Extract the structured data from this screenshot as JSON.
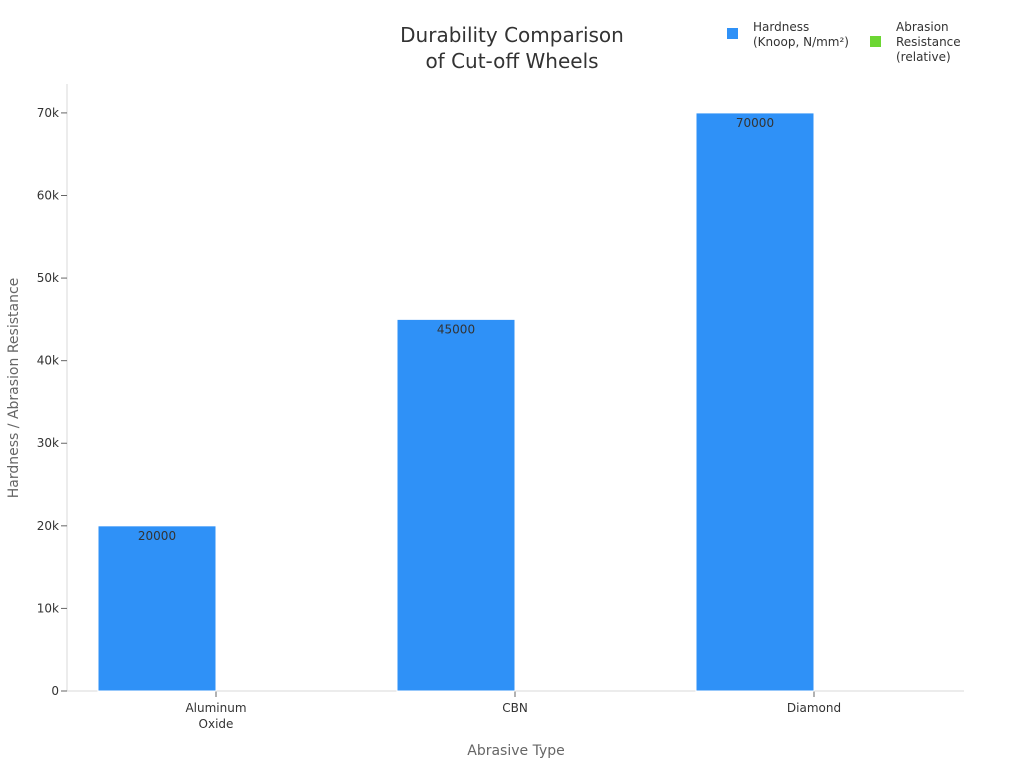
{
  "chart_data": {
    "type": "bar",
    "title": [
      "Durability Comparison",
      "of Cut-off Wheels"
    ],
    "xlabel": "Abrasive Type",
    "ylabel": "Hardness / Abrasion Resistance",
    "categories": [
      [
        "Aluminum",
        "Oxide"
      ],
      [
        "CBN"
      ],
      [
        "Diamond"
      ]
    ],
    "ylim": [
      0,
      73500
    ],
    "yticks": [
      0,
      10000,
      20000,
      30000,
      40000,
      50000,
      60000,
      70000
    ],
    "ytick_labels": [
      "0",
      "10k",
      "20k",
      "30k",
      "40k",
      "50k",
      "60k",
      "70k"
    ],
    "grid": false,
    "legend_position": "top-right",
    "series": [
      {
        "name": [
          "Hardness",
          "(Knoop, N/mm²)"
        ],
        "color": "#2f91f7",
        "values": [
          20000,
          45000,
          70000
        ],
        "data_labels": [
          "20000",
          "45000",
          "70000"
        ]
      },
      {
        "name": [
          "Abrasion",
          "Resistance",
          "(relative)"
        ],
        "color": "#6cd633",
        "values": [
          0,
          0,
          0
        ],
        "data_labels": [
          "",
          "",
          ""
        ]
      }
    ]
  }
}
